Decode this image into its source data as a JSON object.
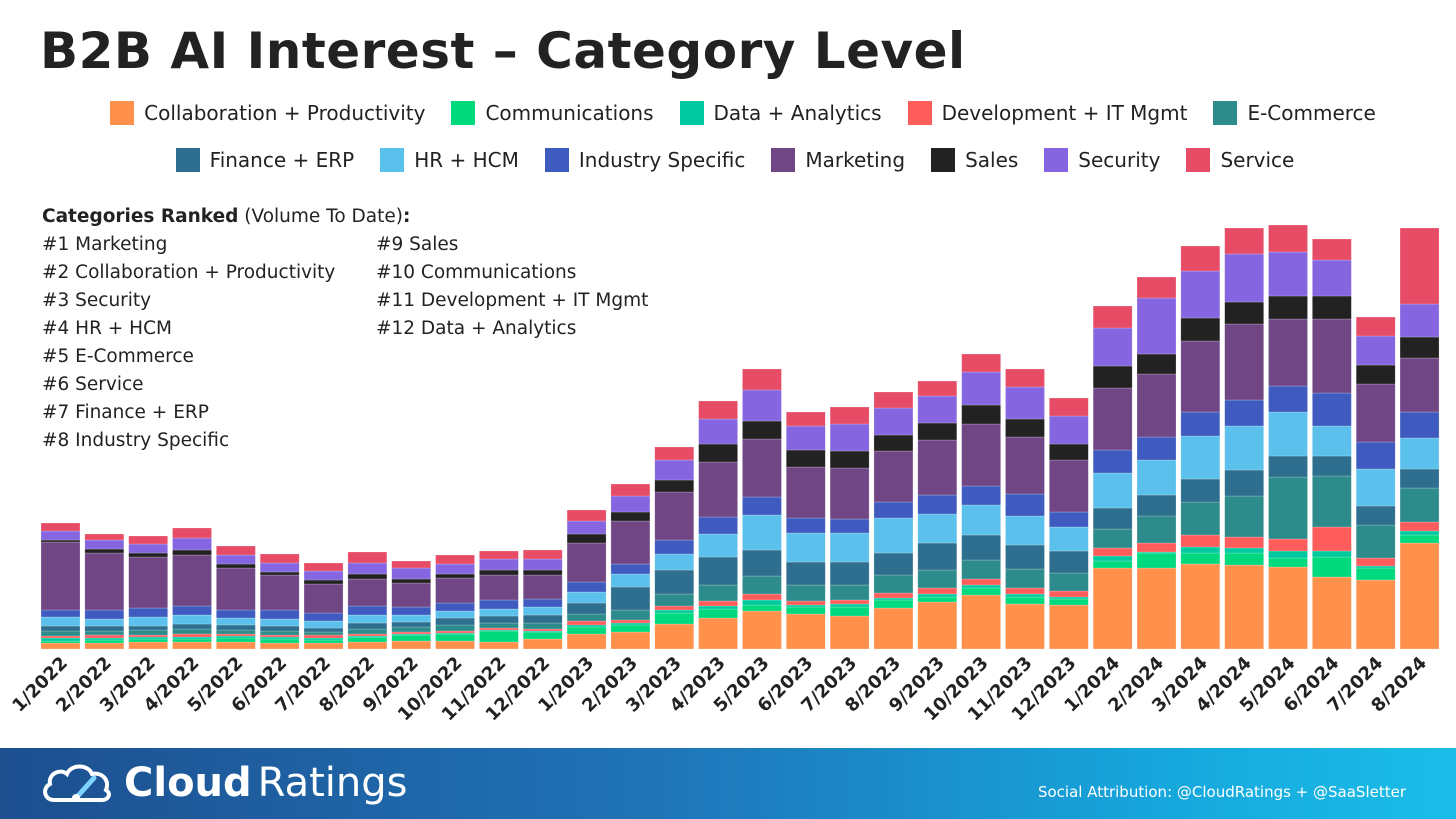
{
  "chart_data": {
    "type": "bar",
    "stacked": true,
    "title": "B2B AI Interest – Category Level",
    "xlabel": "",
    "ylabel": "",
    "grid": false,
    "legend_position": "top",
    "ylim": [
      0,
      440
    ],
    "categories": [
      "1/2022",
      "2/2022",
      "3/2022",
      "4/2022",
      "5/2022",
      "6/2022",
      "7/2022",
      "8/2022",
      "9/2022",
      "10/2022",
      "11/2022",
      "12/2022",
      "1/2023",
      "2/2023",
      "3/2023",
      "4/2023",
      "5/2023",
      "6/2023",
      "7/2023",
      "8/2023",
      "9/2023",
      "10/2023",
      "11/2023",
      "12/2023",
      "1/2024",
      "2/2024",
      "3/2024",
      "4/2024",
      "5/2024",
      "6/2024",
      "7/2024",
      "8/2024"
    ],
    "series": [
      {
        "name": "Collaboration + Productivity",
        "color": "#FF914D",
        "values": [
          6,
          6,
          7,
          7,
          7,
          6,
          6,
          7,
          8,
          8,
          7,
          10,
          15,
          17,
          25,
          31,
          38,
          35,
          33,
          41,
          47,
          54,
          45,
          44,
          81,
          81,
          85,
          84,
          82,
          72,
          69,
          106
        ]
      },
      {
        "name": "Communications",
        "color": "#00D97E",
        "values": [
          2,
          3,
          3,
          3,
          4,
          4,
          3,
          5,
          6,
          7,
          11,
          7,
          7,
          7,
          11,
          9,
          6,
          7,
          9,
          8,
          5,
          7,
          7,
          6,
          7,
          15,
          11,
          12,
          9,
          20,
          12,
          8
        ]
      },
      {
        "name": "Data + Analytics",
        "color": "#00C9A0",
        "values": [
          3,
          2,
          2,
          2,
          2,
          2,
          2,
          1,
          1,
          1,
          1,
          1,
          2,
          2,
          3,
          3,
          5,
          2,
          3,
          2,
          3,
          3,
          3,
          2,
          5,
          1,
          6,
          5,
          7,
          6,
          2,
          4
        ]
      },
      {
        "name": "Development + IT Mgmt",
        "color": "#FF5C5C",
        "values": [
          2,
          3,
          2,
          3,
          2,
          2,
          3,
          2,
          2,
          2,
          2,
          2,
          4,
          3,
          4,
          5,
          6,
          4,
          4,
          5,
          6,
          6,
          6,
          6,
          8,
          9,
          12,
          11,
          12,
          24,
          8,
          9
        ]
      },
      {
        "name": "E-Commerce",
        "color": "#2E8B8B",
        "values": [
          5,
          4,
          5,
          5,
          4,
          4,
          3,
          5,
          5,
          6,
          5,
          6,
          7,
          10,
          12,
          16,
          18,
          16,
          15,
          18,
          18,
          19,
          19,
          18,
          19,
          27,
          33,
          41,
          62,
          51,
          33,
          34
        ]
      },
      {
        "name": "Finance + ERP",
        "color": "#2E6E8E",
        "values": [
          5,
          5,
          4,
          5,
          5,
          5,
          4,
          6,
          5,
          7,
          7,
          8,
          11,
          23,
          24,
          28,
          26,
          23,
          23,
          22,
          27,
          25,
          24,
          22,
          21,
          21,
          23,
          26,
          21,
          20,
          19,
          19
        ]
      },
      {
        "name": "HR + HCM",
        "color": "#5BC0EB",
        "values": [
          9,
          7,
          9,
          9,
          7,
          7,
          7,
          8,
          7,
          7,
          7,
          8,
          11,
          13,
          16,
          23,
          35,
          29,
          29,
          35,
          29,
          30,
          29,
          24,
          35,
          35,
          43,
          44,
          44,
          30,
          37,
          31
        ]
      },
      {
        "name": "Industry Specific",
        "color": "#3F5BBF",
        "values": [
          7,
          9,
          9,
          9,
          8,
          9,
          8,
          9,
          8,
          8,
          9,
          8,
          10,
          10,
          14,
          17,
          18,
          15,
          14,
          16,
          19,
          19,
          22,
          15,
          23,
          23,
          24,
          26,
          26,
          33,
          27,
          26
        ]
      },
      {
        "name": "Marketing",
        "color": "#714685",
        "values": [
          68,
          57,
          51,
          51,
          42,
          35,
          29,
          27,
          24,
          25,
          25,
          24,
          39,
          43,
          48,
          55,
          58,
          51,
          51,
          51,
          55,
          62,
          57,
          52,
          62,
          63,
          71,
          76,
          67,
          74,
          58,
          54
        ]
      },
      {
        "name": "Sales",
        "color": "#222222",
        "values": [
          2,
          4,
          4,
          5,
          4,
          3,
          4,
          5,
          4,
          4,
          5,
          5,
          9,
          9,
          12,
          18,
          18,
          17,
          17,
          16,
          17,
          19,
          18,
          16,
          22,
          20,
          23,
          22,
          23,
          23,
          19,
          21
        ]
      },
      {
        "name": "Security",
        "color": "#8566E0",
        "values": [
          9,
          9,
          9,
          12,
          9,
          9,
          9,
          11,
          11,
          10,
          11,
          11,
          13,
          16,
          20,
          25,
          31,
          24,
          27,
          27,
          27,
          33,
          32,
          28,
          38,
          56,
          47,
          48,
          44,
          36,
          29,
          33
        ]
      },
      {
        "name": "Service",
        "color": "#E64C66",
        "values": [
          8,
          6,
          8,
          10,
          9,
          9,
          8,
          11,
          7,
          9,
          8,
          9,
          11,
          12,
          13,
          18,
          21,
          14,
          17,
          16,
          15,
          18,
          18,
          18,
          22,
          21,
          25,
          26,
          27,
          21,
          19,
          76
        ]
      }
    ]
  },
  "header": {
    "title": "B2B AI Interest – Category Level"
  },
  "ranking": {
    "heading_bold": "Categories Ranked",
    "heading_normal": " (Volume To Date)",
    "heading_colon": ":",
    "items": [
      "#1 Marketing",
      "#2 Collaboration + Productivity",
      "#3 Security",
      "#4 HR + HCM",
      "#5 E-Commerce",
      "#6 Service",
      "#7 Finance + ERP",
      "#8 Industry Specific",
      "#9 Sales",
      "#10 Communications",
      "#11 Development + IT Mgmt",
      "#12 Data + Analytics"
    ]
  },
  "footer": {
    "logo_bold": "Cloud",
    "logo_light": "Ratings",
    "attribution": "Social Attribution: @CloudRatings + @SaaSletter"
  }
}
